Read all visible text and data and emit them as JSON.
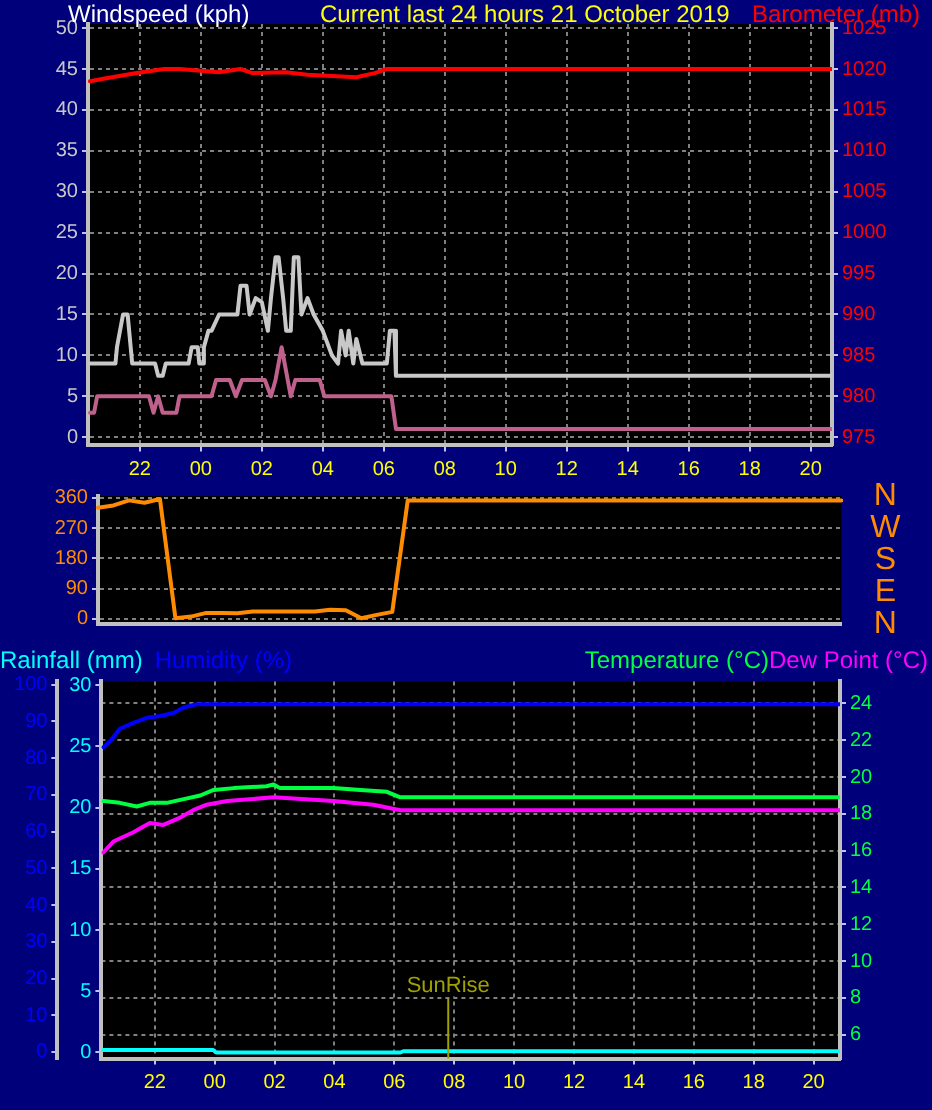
{
  "chart_data": [
    {
      "type": "line",
      "title": "Current last 24 hours 21 October 2019",
      "ylabel": "Windspeed (kph)",
      "y2label": "Barometer (mb)",
      "xlim": [
        "2019-10-20T20:18",
        "2019-10-21T20:42"
      ],
      "xticks": [
        {
          "value": "2019-10-20T22:00",
          "label": "22"
        },
        {
          "value": "2019-10-21T00:00",
          "label": "00"
        },
        {
          "value": "2019-10-21T02:00",
          "label": "02"
        },
        {
          "value": "2019-10-21T04:00",
          "label": "04"
        },
        {
          "value": "2019-10-21T06:00",
          "label": "06"
        },
        {
          "value": "2019-10-21T08:00",
          "label": "08"
        },
        {
          "value": "2019-10-21T10:00",
          "label": "10"
        },
        {
          "value": "2019-10-21T12:00",
          "label": "12"
        },
        {
          "value": "2019-10-21T14:00",
          "label": "14"
        },
        {
          "value": "2019-10-21T16:00",
          "label": "16"
        },
        {
          "value": "2019-10-21T18:00",
          "label": "18"
        },
        {
          "value": "2019-10-21T20:00",
          "label": "20"
        }
      ],
      "ylim": [
        -1,
        50.5
      ],
      "yticks": [
        0,
        5,
        10,
        15,
        20,
        25,
        30,
        35,
        40,
        45,
        50
      ],
      "y2lim": [
        974,
        1025.5
      ],
      "y2ticks": [
        975,
        980,
        985,
        990,
        995,
        1000,
        1005,
        1010,
        1015,
        1020,
        1025
      ],
      "grid": true,
      "legend": false,
      "marker": "none",
      "series": [
        {
          "color": "#c8c8c8",
          "x": [
            "2019-10-20T20:22",
            "2019-10-20T21:12",
            "2019-10-20T21:15",
            "2019-10-20T21:27",
            "2019-10-20T21:36",
            "2019-10-20T21:45",
            "2019-10-20T21:48",
            "2019-10-20T22:30",
            "2019-10-20T22:36",
            "2019-10-20T22:45",
            "2019-10-20T22:51",
            "2019-10-20T23:36",
            "2019-10-20T23:42",
            "2019-10-20T23:54",
            "2019-10-20T23:57",
            "2019-10-21T00:03",
            "2019-10-21T00:06",
            "2019-10-21T00:15",
            "2019-10-21T00:21",
            "2019-10-21T00:36",
            "2019-10-21T01:12",
            "2019-10-21T01:18",
            "2019-10-21T01:30",
            "2019-10-21T01:36",
            "2019-10-21T01:48",
            "2019-10-21T02:00",
            "2019-10-21T02:12",
            "2019-10-21T02:18",
            "2019-10-21T02:27",
            "2019-10-21T02:33",
            "2019-10-21T02:42",
            "2019-10-21T02:48",
            "2019-10-21T02:57",
            "2019-10-21T03:03",
            "2019-10-21T03:12",
            "2019-10-21T03:18",
            "2019-10-21T03:30",
            "2019-10-21T03:42",
            "2019-10-21T04:00",
            "2019-10-21T04:18",
            "2019-10-21T04:30",
            "2019-10-21T04:36",
            "2019-10-21T04:45",
            "2019-10-21T04:51",
            "2019-10-21T05:00",
            "2019-10-21T05:06",
            "2019-10-21T05:18",
            "2019-10-21T05:24",
            "2019-10-21T06:06",
            "2019-10-21T06:12",
            "2019-10-21T06:21",
            "2019-10-21T06:24",
            "2019-10-21T20:42"
          ],
          "values": [
            9,
            9,
            11,
            15,
            15,
            9,
            9,
            9,
            7.5,
            7.5,
            9,
            9,
            11,
            11,
            9,
            9,
            11,
            13,
            13,
            15,
            15,
            18.5,
            18.5,
            15,
            17,
            16.5,
            13,
            17,
            22,
            22,
            17,
            13,
            13,
            22,
            22,
            15,
            17,
            15,
            13,
            10,
            9,
            13,
            10,
            13,
            9,
            12,
            9,
            9,
            9,
            13,
            13,
            7.5,
            7.5
          ]
        },
        {
          "color": "#c0608c",
          "x": [
            "2019-10-20T20:22",
            "2019-10-20T20:30",
            "2019-10-20T20:36",
            "2019-10-20T22:18",
            "2019-10-20T22:27",
            "2019-10-20T22:36",
            "2019-10-20T22:45",
            "2019-10-20T23:12",
            "2019-10-20T23:18",
            "2019-10-21T00:21",
            "2019-10-21T00:30",
            "2019-10-21T00:57",
            "2019-10-21T01:09",
            "2019-10-21T01:21",
            "2019-10-21T02:06",
            "2019-10-21T02:18",
            "2019-10-21T02:27",
            "2019-10-21T02:39",
            "2019-10-21T02:57",
            "2019-10-21T03:06",
            "2019-10-21T03:54",
            "2019-10-21T04:03",
            "2019-10-21T06:15",
            "2019-10-21T06:24",
            "2019-10-21T20:42"
          ],
          "values": [
            3,
            3,
            5,
            5,
            3,
            5,
            3,
            3,
            5,
            5,
            7,
            7,
            5,
            7,
            7,
            5,
            7,
            11,
            5,
            7,
            7,
            5,
            5,
            1,
            1
          ]
        },
        {
          "color": "#ff0000",
          "axis": "y2",
          "x": [
            "2019-10-20T20:22",
            "2019-10-20T20:48",
            "2019-10-20T21:54",
            "2019-10-20T22:48",
            "2019-10-20T23:18",
            "2019-10-21T00:00",
            "2019-10-21T00:36",
            "2019-10-21T01:18",
            "2019-10-21T01:42",
            "2019-10-21T02:48",
            "2019-10-21T03:30",
            "2019-10-21T05:06",
            "2019-10-21T05:42",
            "2019-10-21T06:06",
            "2019-10-21T20:42"
          ],
          "values": [
            1018.5,
            1018.8,
            1019.5,
            1020,
            1020,
            1019.8,
            1019.6,
            1020,
            1019.5,
            1019.6,
            1019.3,
            1019,
            1019.5,
            1020,
            1020
          ]
        }
      ]
    },
    {
      "type": "line",
      "categories": [
        null,
        null,
        null,
        null,
        null,
        null,
        null,
        null,
        null,
        null,
        null,
        null,
        null,
        null,
        null,
        null,
        null,
        null,
        null,
        null,
        null,
        null,
        null,
        null,
        null,
        null,
        null,
        null,
        null,
        null,
        null,
        null,
        null,
        null,
        null,
        null,
        null,
        null,
        null,
        null,
        null,
        null,
        null,
        null,
        null,
        null,
        null,
        null,
        null
      ],
      "ylim": [
        -15,
        365
      ],
      "yticks": [
        0,
        90,
        180,
        270,
        360
      ],
      "grid": "y",
      "legend": false,
      "marker": "none",
      "annotations": [
        "N",
        "W",
        "S",
        "E",
        "N"
      ],
      "series": [
        {
          "color": "#ff8c00",
          "values": [
            330,
            337,
            352,
            345,
            356,
            2,
            7,
            18,
            18,
            17,
            22,
            22,
            22,
            22,
            22,
            27,
            26,
            2,
            12,
            21,
            352,
            352,
            352,
            352,
            352,
            352,
            352,
            352,
            352,
            352,
            352,
            352,
            352,
            352,
            352,
            352,
            352,
            352,
            352,
            352,
            352,
            352,
            352,
            352,
            352,
            352,
            352,
            352,
            352
          ]
        }
      ]
    },
    {
      "type": "line",
      "xlim": [
        "2019-10-20T20:13",
        "2019-10-21T20:53"
      ],
      "xticks": [
        {
          "value": "2019-10-20T22:00",
          "label": "22"
        },
        {
          "value": "2019-10-21T00:00",
          "label": "00"
        },
        {
          "value": "2019-10-21T02:00",
          "label": "02"
        },
        {
          "value": "2019-10-21T04:00",
          "label": "04"
        },
        {
          "value": "2019-10-21T06:00",
          "label": "06"
        },
        {
          "value": "2019-10-21T08:00",
          "label": "08"
        },
        {
          "value": "2019-10-21T10:00",
          "label": "10"
        },
        {
          "value": "2019-10-21T12:00",
          "label": "12"
        },
        {
          "value": "2019-10-21T14:00",
          "label": "14"
        },
        {
          "value": "2019-10-21T16:00",
          "label": "16"
        },
        {
          "value": "2019-10-21T18:00",
          "label": "18"
        },
        {
          "value": "2019-10-21T20:00",
          "label": "20"
        }
      ],
      "ylim": [
        -0.5,
        30.3
      ],
      "yticks": [
        0,
        5,
        10,
        15,
        20,
        25,
        30
      ],
      "y3lim": [
        -1.8,
        100.9
      ],
      "y3ticks": [
        0,
        10,
        20,
        30,
        40,
        50,
        60,
        70,
        80,
        90,
        100
      ],
      "y2lim": [
        4.7,
        25.2
      ],
      "y2ticks": [
        6,
        8,
        10,
        12,
        14,
        16,
        18,
        20,
        22,
        24
      ],
      "grid": true,
      "legend": "top",
      "marker": "none",
      "ref_lines": [
        {
          "axis": "x",
          "value": "2019-10-21T07:48",
          "label": "SunRise",
          "color": "#a0a000"
        }
      ],
      "series": [
        {
          "name": "Rainfall (mm)",
          "color": "#00ffff",
          "x": [
            "2019-10-20T20:17",
            "2019-10-20T23:57",
            "2019-10-21T00:03",
            "2019-10-21T06:12",
            "2019-10-21T06:18",
            "2019-10-21T20:51"
          ],
          "values": [
            0.2,
            0.2,
            0,
            0,
            0.1,
            0.1
          ]
        },
        {
          "name": "Humidity (%)",
          "color": "#0000ff",
          "axis": "y3",
          "x": [
            "2019-10-20T20:17",
            "2019-10-20T20:31",
            "2019-10-20T20:50",
            "2019-10-20T21:17",
            "2019-10-20T21:44",
            "2019-10-20T22:11",
            "2019-10-20T22:37",
            "2019-10-20T22:58",
            "2019-10-20T23:24",
            "2019-10-21T20:51"
          ],
          "values": [
            83,
            84.7,
            88,
            89.6,
            91,
            91.5,
            92.3,
            93.8,
            94.7,
            94.7
          ]
        },
        {
          "name": "Temperature (°C)",
          "color": "#00ff40",
          "axis": "y2",
          "x": [
            "2019-10-20T20:17",
            "2019-10-20T20:50",
            "2019-10-20T21:24",
            "2019-10-20T21:50",
            "2019-10-20T22:24",
            "2019-10-20T22:58",
            "2019-10-20T23:31",
            "2019-10-20T23:58",
            "2019-10-21T00:38",
            "2019-10-21T01:44",
            "2019-10-21T01:58",
            "2019-10-21T02:11",
            "2019-10-21T03:58",
            "2019-10-21T04:52",
            "2019-10-21T05:45",
            "2019-10-21T06:12",
            "2019-10-21T20:51"
          ],
          "values": [
            18.7,
            18.6,
            18.4,
            18.6,
            18.6,
            18.8,
            19.0,
            19.3,
            19.4,
            19.5,
            19.6,
            19.4,
            19.4,
            19.3,
            19.2,
            18.9,
            18.9
          ]
        },
        {
          "name": "Dew Point (°C)",
          "color": "#ff00ff",
          "axis": "y2",
          "x": [
            "2019-10-20T20:17",
            "2019-10-20T20:37",
            "2019-10-20T21:17",
            "2019-10-20T21:50",
            "2019-10-20T22:17",
            "2019-10-20T22:51",
            "2019-10-20T23:17",
            "2019-10-20T23:44",
            "2019-10-21T00:25",
            "2019-10-21T01:58",
            "2019-10-21T03:58",
            "2019-10-21T05:18",
            "2019-10-21T06:12",
            "2019-10-21T20:51"
          ],
          "values": [
            15.9,
            16.5,
            17.0,
            17.5,
            17.4,
            17.8,
            18.2,
            18.5,
            18.7,
            18.9,
            18.7,
            18.5,
            18.2,
            18.2
          ]
        }
      ]
    }
  ]
}
